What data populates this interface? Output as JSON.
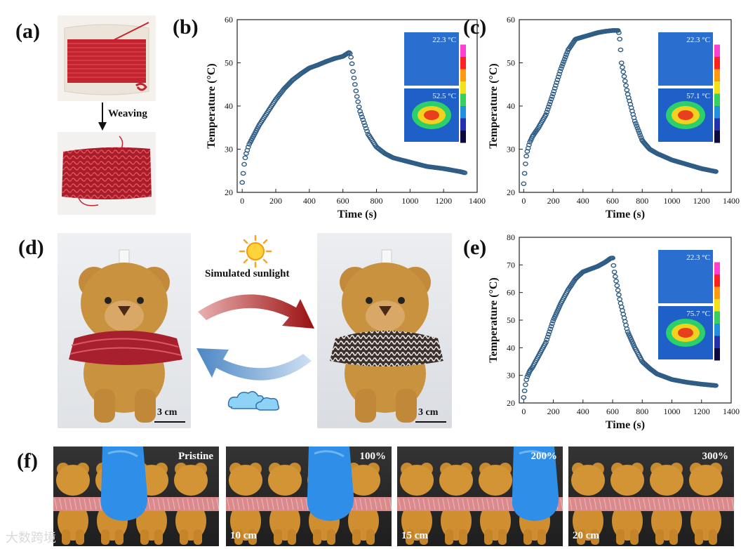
{
  "panels": {
    "a": {
      "label": "(a)",
      "arrow_label": "Weaving"
    },
    "b": {
      "label": "(b)"
    },
    "c": {
      "label": "(c)"
    },
    "d": {
      "label": "(d)",
      "sunlight_label": "Simulated sunlight",
      "scale_left": "3 cm",
      "scale_right": "3 cm"
    },
    "e": {
      "label": "(e)"
    },
    "f": {
      "label": "(f)"
    }
  },
  "strip": [
    {
      "corner": "Pristine",
      "length": ""
    },
    {
      "corner": "100%",
      "length": "10 cm"
    },
    {
      "corner": "200%",
      "length": "15 cm"
    },
    {
      "corner": "300%",
      "length": "20 cm"
    }
  ],
  "watermark": "大数跨境",
  "chart_data": [
    {
      "id": "b",
      "type": "scatter",
      "xlabel": "Time (s)",
      "ylabel": "Temperature (°C)",
      "xlim": [
        -30,
        1400
      ],
      "ylim": [
        20,
        60
      ],
      "xticks": [
        0,
        200,
        400,
        600,
        800,
        1000,
        1200,
        1400
      ],
      "yticks": [
        20,
        30,
        40,
        50,
        60
      ],
      "inset": {
        "before_temp": "22.3 °C",
        "after_temp": "52.5 °C"
      },
      "x": [
        0,
        5,
        10,
        20,
        40,
        60,
        80,
        100,
        150,
        200,
        250,
        300,
        350,
        400,
        450,
        500,
        550,
        600,
        640,
        650,
        660,
        680,
        700,
        750,
        800,
        850,
        900,
        1000,
        1100,
        1200,
        1300,
        1330
      ],
      "y": [
        22.3,
        24,
        26,
        28.5,
        31,
        32.5,
        34,
        35.5,
        38.5,
        41.5,
        44,
        46,
        47.5,
        48.8,
        49.5,
        50.3,
        51,
        51.5,
        52.5,
        51,
        48,
        43,
        39,
        33.5,
        30.5,
        29,
        28,
        27,
        26,
        25.5,
        24.8,
        24.5
      ]
    },
    {
      "id": "c",
      "type": "scatter",
      "xlabel": "Time (s)",
      "ylabel": "Temperature (°C)",
      "xlim": [
        -30,
        1400
      ],
      "ylim": [
        20,
        60
      ],
      "xticks": [
        0,
        200,
        400,
        600,
        800,
        1000,
        1200,
        1400
      ],
      "yticks": [
        20,
        30,
        40,
        50,
        60
      ],
      "inset": {
        "before_temp": "22.3 °C",
        "after_temp": "57.1 °C"
      },
      "x": [
        0,
        10,
        20,
        40,
        60,
        80,
        100,
        150,
        200,
        250,
        300,
        350,
        400,
        450,
        500,
        550,
        600,
        640,
        650,
        660,
        700,
        750,
        800,
        850,
        900,
        1000,
        1100,
        1200,
        1300
      ],
      "y": [
        22,
        26,
        29,
        31.5,
        33,
        34,
        35,
        38,
        43,
        48.5,
        53,
        55.5,
        56,
        56.5,
        57,
        57.3,
        57.5,
        57.5,
        55,
        50,
        43,
        36.5,
        32,
        30,
        29,
        27.5,
        26.5,
        25.5,
        24.8
      ]
    },
    {
      "id": "e",
      "type": "scatter",
      "xlabel": "Time (s)",
      "ylabel": "Temperature (°C)",
      "xlim": [
        -30,
        1400
      ],
      "ylim": [
        20,
        80
      ],
      "xticks": [
        0,
        200,
        400,
        600,
        800,
        1000,
        1200,
        1400
      ],
      "yticks": [
        20,
        30,
        40,
        50,
        60,
        70,
        80
      ],
      "inset": {
        "before_temp": "22.3 °C",
        "after_temp": "75.7 °C"
      },
      "x": [
        0,
        10,
        20,
        40,
        60,
        80,
        100,
        150,
        200,
        250,
        300,
        350,
        400,
        450,
        500,
        550,
        590,
        600,
        610,
        650,
        700,
        750,
        800,
        850,
        900,
        1000,
        1100,
        1200,
        1300
      ],
      "y": [
        22,
        26,
        29,
        31.5,
        33,
        35,
        37,
        42,
        50,
        56,
        61,
        65,
        67.5,
        68.5,
        69.5,
        71,
        72.5,
        72.5,
        68,
        57,
        46,
        40,
        35,
        32.5,
        30.5,
        28.5,
        27.5,
        26.8,
        26.3
      ]
    }
  ]
}
